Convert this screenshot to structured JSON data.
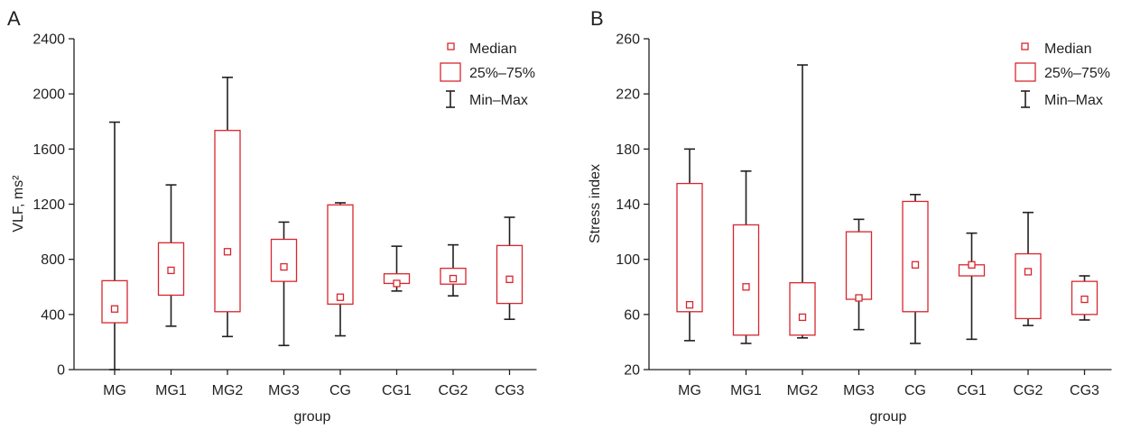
{
  "colors": {
    "box": "#d7262e",
    "axis": "#231f20"
  },
  "legend": {
    "median": "Median",
    "iqr": "25%–75%",
    "range": "Min–Max"
  },
  "chart_data": [
    {
      "type": "box",
      "panel_label": "A",
      "xlabel": "group",
      "ylabel": "VLF, ms²",
      "ylim": [
        0,
        2400
      ],
      "yticks": [
        0,
        400,
        800,
        1200,
        1600,
        2000,
        2400
      ],
      "categories": [
        "MG",
        "MG1",
        "MG2",
        "MG3",
        "CG",
        "CG1",
        "CG2",
        "CG3"
      ],
      "min": [
        0,
        315,
        240,
        175,
        245,
        570,
        535,
        365
      ],
      "q1": [
        340,
        540,
        420,
        640,
        475,
        625,
        620,
        480
      ],
      "median": [
        440,
        720,
        855,
        745,
        525,
        625,
        660,
        655
      ],
      "q3": [
        645,
        920,
        1735,
        945,
        1195,
        695,
        735,
        900
      ],
      "max": [
        1795,
        1340,
        2120,
        1070,
        1210,
        895,
        905,
        1105
      ],
      "legend_position": "top-right"
    },
    {
      "type": "box",
      "panel_label": "B",
      "xlabel": "group",
      "ylabel": "Stress index",
      "ylim": [
        20,
        260
      ],
      "yticks": [
        20,
        60,
        100,
        140,
        180,
        220,
        260
      ],
      "categories": [
        "MG",
        "MG1",
        "MG2",
        "MG3",
        "CG",
        "CG1",
        "CG2",
        "CG3"
      ],
      "min": [
        41,
        39,
        43,
        49,
        39,
        42,
        52,
        56
      ],
      "q1": [
        62,
        45,
        45,
        71,
        62,
        88,
        57,
        60
      ],
      "median": [
        67,
        80,
        58,
        72,
        96,
        96,
        91,
        71
      ],
      "q3": [
        155,
        125,
        83,
        120,
        142,
        96,
        104,
        84
      ],
      "max": [
        180,
        164,
        241,
        129,
        147,
        119,
        134,
        88
      ],
      "legend_position": "top-right"
    }
  ]
}
